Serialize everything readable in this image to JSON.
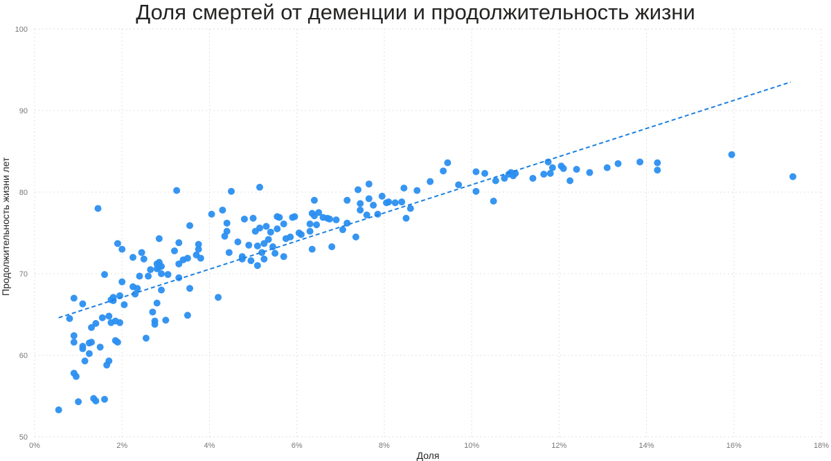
{
  "chart_data": {
    "type": "scatter",
    "title": "Доля смертей от деменции и продолжительность жизни",
    "xlabel": "Доля",
    "ylabel": "Продолжительность жизни лет",
    "xlim": [
      0,
      18
    ],
    "ylim": [
      50,
      100
    ],
    "x_ticks": [
      "0%",
      "2%",
      "4%",
      "6%",
      "8%",
      "10%",
      "12%",
      "14%",
      "16%",
      "18%"
    ],
    "y_ticks": [
      "50",
      "60",
      "70",
      "80",
      "90",
      "100"
    ],
    "grid": true,
    "legend": null,
    "point_color": "#2b8ff0",
    "trendline": {
      "style": "dashed",
      "color": "#1a7fe0",
      "x": [
        0.55,
        17.3
      ],
      "y": [
        64.6,
        93.5
      ]
    },
    "points": [
      [
        0.55,
        53.3
      ],
      [
        0.8,
        64.5
      ],
      [
        0.9,
        67.0
      ],
      [
        0.9,
        62.4
      ],
      [
        0.9,
        61.6
      ],
      [
        0.9,
        57.8
      ],
      [
        0.95,
        57.4
      ],
      [
        1.0,
        54.3
      ],
      [
        1.1,
        66.3
      ],
      [
        1.1,
        61.1
      ],
      [
        1.1,
        60.8
      ],
      [
        1.15,
        59.3
      ],
      [
        1.25,
        61.5
      ],
      [
        1.25,
        60.2
      ],
      [
        1.3,
        63.4
      ],
      [
        1.3,
        61.6
      ],
      [
        1.35,
        54.7
      ],
      [
        1.4,
        63.9
      ],
      [
        1.4,
        54.4
      ],
      [
        1.45,
        78.0
      ],
      [
        1.5,
        61.0
      ],
      [
        1.55,
        64.6
      ],
      [
        1.6,
        69.9
      ],
      [
        1.6,
        54.6
      ],
      [
        1.65,
        58.8
      ],
      [
        1.7,
        64.8
      ],
      [
        1.7,
        59.3
      ],
      [
        1.75,
        66.8
      ],
      [
        1.75,
        64.0
      ],
      [
        1.8,
        67.1
      ],
      [
        1.8,
        66.7
      ],
      [
        1.85,
        64.2
      ],
      [
        1.85,
        61.8
      ],
      [
        1.9,
        73.7
      ],
      [
        1.9,
        61.6
      ],
      [
        1.95,
        64.0
      ],
      [
        1.95,
        67.3
      ],
      [
        2.0,
        73.0
      ],
      [
        2.0,
        69.0
      ],
      [
        2.05,
        66.2
      ],
      [
        2.25,
        72.0
      ],
      [
        2.25,
        68.4
      ],
      [
        2.3,
        67.5
      ],
      [
        2.35,
        68.2
      ],
      [
        2.4,
        69.7
      ],
      [
        2.45,
        72.6
      ],
      [
        2.5,
        71.8
      ],
      [
        2.55,
        62.1
      ],
      [
        2.6,
        69.7
      ],
      [
        2.65,
        70.5
      ],
      [
        2.7,
        65.3
      ],
      [
        2.75,
        64.2
      ],
      [
        2.75,
        63.8
      ],
      [
        2.8,
        71.2
      ],
      [
        2.8,
        70.6
      ],
      [
        2.8,
        66.4
      ],
      [
        2.85,
        74.3
      ],
      [
        2.85,
        70.8
      ],
      [
        2.85,
        71.4
      ],
      [
        2.9,
        70.9
      ],
      [
        2.9,
        68.0
      ],
      [
        2.9,
        70.0
      ],
      [
        3.0,
        64.3
      ],
      [
        3.05,
        69.9
      ],
      [
        3.2,
        72.8
      ],
      [
        3.25,
        80.2
      ],
      [
        3.3,
        73.8
      ],
      [
        3.3,
        71.2
      ],
      [
        3.3,
        69.5
      ],
      [
        3.4,
        71.7
      ],
      [
        3.5,
        71.9
      ],
      [
        3.5,
        64.9
      ],
      [
        3.55,
        75.9
      ],
      [
        3.55,
        68.2
      ],
      [
        3.7,
        72.3
      ],
      [
        3.75,
        73.6
      ],
      [
        3.75,
        73.0
      ],
      [
        3.8,
        71.9
      ],
      [
        4.05,
        77.3
      ],
      [
        4.2,
        67.1
      ],
      [
        4.3,
        77.8
      ],
      [
        4.35,
        74.6
      ],
      [
        4.4,
        76.2
      ],
      [
        4.4,
        75.2
      ],
      [
        4.45,
        72.6
      ],
      [
        4.5,
        80.1
      ],
      [
        4.65,
        73.9
      ],
      [
        4.75,
        72.1
      ],
      [
        4.75,
        71.8
      ],
      [
        4.8,
        76.7
      ],
      [
        4.9,
        73.5
      ],
      [
        4.95,
        71.6
      ],
      [
        5.0,
        76.8
      ],
      [
        5.05,
        75.2
      ],
      [
        5.1,
        73.4
      ],
      [
        5.1,
        71.0
      ],
      [
        5.15,
        80.6
      ],
      [
        5.15,
        75.6
      ],
      [
        5.2,
        72.6
      ],
      [
        5.25,
        73.7
      ],
      [
        5.25,
        71.8
      ],
      [
        5.3,
        75.8
      ],
      [
        5.35,
        74.2
      ],
      [
        5.4,
        75.1
      ],
      [
        5.45,
        73.3
      ],
      [
        5.5,
        72.5
      ],
      [
        5.55,
        75.5
      ],
      [
        5.55,
        77.0
      ],
      [
        5.6,
        76.9
      ],
      [
        5.7,
        76.1
      ],
      [
        5.7,
        72.1
      ],
      [
        5.75,
        74.3
      ],
      [
        5.85,
        74.5
      ],
      [
        5.9,
        76.9
      ],
      [
        5.95,
        77.0
      ],
      [
        6.05,
        75.0
      ],
      [
        6.1,
        74.8
      ],
      [
        6.3,
        76.1
      ],
      [
        6.3,
        75.2
      ],
      [
        6.35,
        73.0
      ],
      [
        6.35,
        77.4
      ],
      [
        6.4,
        77.1
      ],
      [
        6.4,
        79.0
      ],
      [
        6.45,
        76.0
      ],
      [
        6.5,
        77.5
      ],
      [
        6.6,
        76.9
      ],
      [
        6.7,
        76.8
      ],
      [
        6.75,
        76.7
      ],
      [
        6.8,
        73.3
      ],
      [
        6.9,
        76.6
      ],
      [
        7.05,
        75.4
      ],
      [
        7.15,
        76.2
      ],
      [
        7.15,
        79.0
      ],
      [
        7.35,
        74.5
      ],
      [
        7.4,
        80.3
      ],
      [
        7.45,
        78.6
      ],
      [
        7.45,
        77.8
      ],
      [
        7.6,
        77.2
      ],
      [
        7.65,
        81.0
      ],
      [
        7.65,
        79.2
      ],
      [
        7.75,
        78.4
      ],
      [
        7.85,
        77.3
      ],
      [
        7.95,
        79.5
      ],
      [
        8.05,
        78.7
      ],
      [
        8.1,
        78.8
      ],
      [
        8.25,
        78.7
      ],
      [
        8.4,
        78.8
      ],
      [
        8.45,
        80.5
      ],
      [
        8.5,
        76.8
      ],
      [
        8.6,
        78.0
      ],
      [
        8.75,
        80.2
      ],
      [
        9.05,
        81.3
      ],
      [
        9.35,
        82.6
      ],
      [
        9.45,
        83.6
      ],
      [
        9.7,
        80.9
      ],
      [
        10.1,
        82.5
      ],
      [
        10.1,
        80.1
      ],
      [
        10.3,
        82.3
      ],
      [
        10.5,
        78.9
      ],
      [
        10.55,
        81.4
      ],
      [
        10.75,
        81.7
      ],
      [
        10.85,
        82.2
      ],
      [
        10.9,
        82.4
      ],
      [
        10.95,
        82.0
      ],
      [
        11.0,
        82.3
      ],
      [
        11.4,
        81.7
      ],
      [
        11.65,
        82.2
      ],
      [
        11.75,
        83.7
      ],
      [
        11.8,
        82.3
      ],
      [
        11.85,
        83.0
      ],
      [
        12.05,
        83.2
      ],
      [
        12.1,
        82.9
      ],
      [
        12.25,
        81.4
      ],
      [
        12.4,
        82.8
      ],
      [
        12.7,
        82.4
      ],
      [
        13.1,
        83.0
      ],
      [
        13.35,
        83.5
      ],
      [
        13.85,
        83.7
      ],
      [
        14.25,
        83.6
      ],
      [
        14.25,
        82.7
      ],
      [
        15.95,
        84.6
      ],
      [
        17.35,
        81.9
      ]
    ]
  }
}
